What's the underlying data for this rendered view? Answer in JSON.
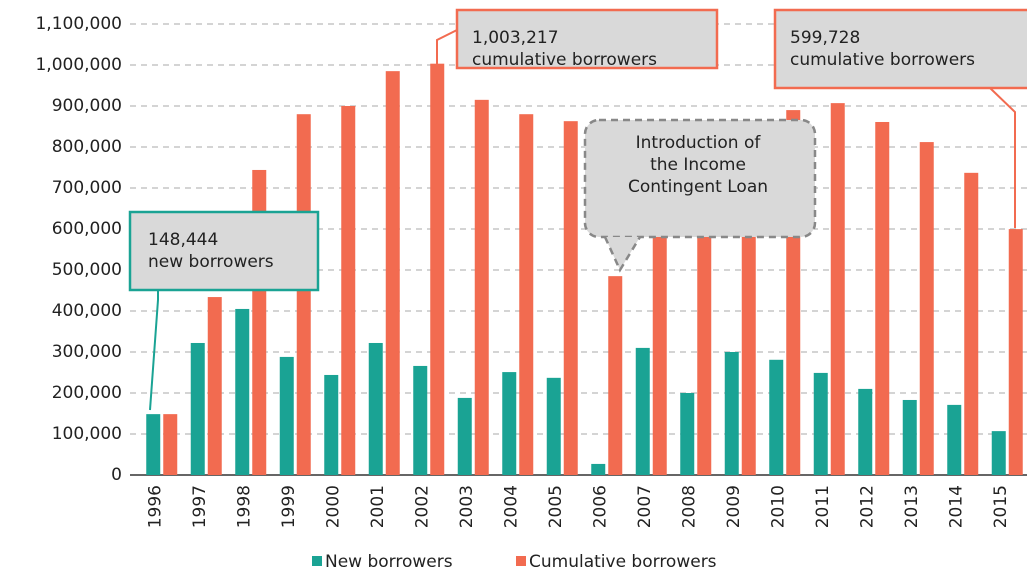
{
  "chart_data": {
    "type": "bar",
    "categories": [
      "1996",
      "1997",
      "1998",
      "1999",
      "2000",
      "2001",
      "2002",
      "2003",
      "2004",
      "2005",
      "2006",
      "2007",
      "2008",
      "2009",
      "2010",
      "2011",
      "2012",
      "2013",
      "2014",
      "2015"
    ],
    "series": [
      {
        "name": "New borrowers",
        "color": "#1aa394",
        "values": [
          148444,
          322000,
          405000,
          288000,
          244000,
          322000,
          266000,
          188000,
          251000,
          237000,
          27000,
          310000,
          200000,
          300000,
          281000,
          249000,
          210000,
          183000,
          171000,
          107000
        ]
      },
      {
        "name": "Cumulative borrowers",
        "color": "#f26b50",
        "values": [
          148444,
          434000,
          744000,
          880000,
          900000,
          985000,
          1003217,
          915000,
          880000,
          863000,
          485000,
          724000,
          710000,
          829000,
          890000,
          907000,
          861000,
          812000,
          737000,
          599728
        ]
      }
    ],
    "ylim": [
      0,
      1100000
    ],
    "yticks": [
      0,
      {
        "value": 100000,
        "label": "100,000"
      },
      {
        "value": 200000,
        "label": "200,000"
      },
      {
        "value": 300000,
        "label": "300,000"
      },
      {
        "value": 400000,
        "label": "400,000"
      },
      {
        "value": 500000,
        "label": "500,000"
      },
      {
        "value": 600000,
        "label": "600,000"
      },
      {
        "value": 700000,
        "label": "700,000"
      },
      {
        "value": 800000,
        "label": "800,000"
      },
      {
        "value": 900000,
        "label": "900,000"
      },
      {
        "value": 1000000,
        "label": "1,000,000"
      },
      {
        "value": 1100000,
        "label": "1,100,000"
      }
    ],
    "grid": true,
    "legend": "bottom",
    "annotations": [
      {
        "lines": [
          "148,444",
          "new borrowers"
        ]
      },
      {
        "lines": [
          "1,003,217",
          "cumulative borrowers"
        ]
      },
      {
        "lines": [
          "599,728",
          "cumulative borrowers"
        ]
      },
      {
        "lines": [
          "Introduction of",
          "the Income",
          "Contingent Loan"
        ]
      }
    ]
  }
}
